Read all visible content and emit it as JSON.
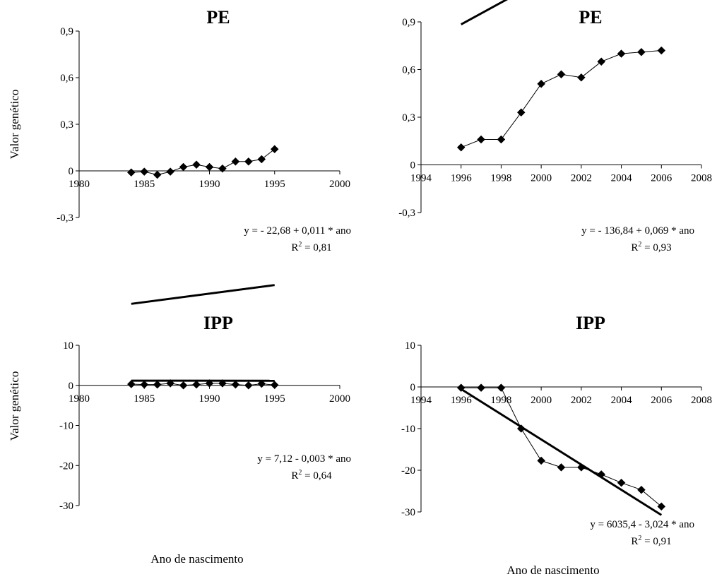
{
  "figure": {
    "x_axis_label_left": "Ano de nascimento",
    "x_axis_label_right": "Ano de nascimento",
    "y_axis_label_top": "Valor genético",
    "y_axis_label_bottom": "Valor genético",
    "line_color": "#000000"
  },
  "chart_data": [
    {
      "type": "line",
      "title": "PE",
      "xlabel": "",
      "ylabel": "Valor genético",
      "xlim": [
        1980,
        2000
      ],
      "ylim": [
        -0.3,
        0.9
      ],
      "xticks": [
        "1980",
        "1985",
        "1990",
        "1995",
        "2000"
      ],
      "yticks": [
        "-0,3",
        "0",
        "0,3",
        "0,6",
        "0,9"
      ],
      "x": [
        1984,
        1985,
        1986,
        1987,
        1988,
        1989,
        1990,
        1991,
        1992,
        1993,
        1994,
        1995
      ],
      "y": [
        -0.01,
        -0.005,
        -0.025,
        -0.005,
        0.025,
        0.04,
        0.025,
        0.015,
        0.06,
        0.06,
        0.075,
        0.14
      ],
      "trend": {
        "intercept": -22.68,
        "slope": 0.011
      },
      "equation": "y = - 22,68 + 0,011 * ano",
      "r2_prefix": "R",
      "r2_value": " = 0,81"
    },
    {
      "type": "line",
      "title": "PE",
      "xlabel": "",
      "ylabel": "",
      "xlim": [
        1994,
        2008
      ],
      "ylim": [
        -0.3,
        0.9
      ],
      "xticks": [
        "1994",
        "1996",
        "1998",
        "2000",
        "2002",
        "2004",
        "2006",
        "2008"
      ],
      "yticks": [
        "-0,3",
        "0",
        "0,3",
        "0,6",
        "0,9"
      ],
      "x": [
        1996,
        1997,
        1998,
        1999,
        2000,
        2001,
        2002,
        2003,
        2004,
        2005,
        2006
      ],
      "y": [
        0.11,
        0.16,
        0.16,
        0.33,
        0.51,
        0.57,
        0.55,
        0.65,
        0.7,
        0.71,
        0.72
      ],
      "trend": {
        "intercept": -136.84,
        "slope": 0.069
      },
      "equation": "y = - 136,84 + 0,069 * ano",
      "r2_prefix": "R",
      "r2_value": " = 0,93"
    },
    {
      "type": "line",
      "title": "IPP",
      "xlabel": "Ano de nascimento",
      "ylabel": "Valor genético",
      "xlim": [
        1980,
        2000
      ],
      "ylim": [
        -30,
        10
      ],
      "xticks": [
        "1980",
        "1985",
        "1990",
        "1995",
        "2000"
      ],
      "yticks": [
        "-30",
        "-20",
        "-10",
        "0",
        "10"
      ],
      "x": [
        1984,
        1985,
        1986,
        1987,
        1988,
        1989,
        1990,
        1991,
        1992,
        1993,
        1994,
        1995
      ],
      "y": [
        0.3,
        0.2,
        0.2,
        0.5,
        0.0,
        0.2,
        0.5,
        0.5,
        0.2,
        0.0,
        0.4,
        0.1
      ],
      "trend": {
        "intercept": 7.12,
        "slope": -0.003
      },
      "equation": "y = 7,12 - 0,003 * ano",
      "r2_prefix": "R",
      "r2_value": " = 0,64"
    },
    {
      "type": "line",
      "title": "IPP",
      "xlabel": "Ano de nascimento",
      "ylabel": "",
      "xlim": [
        1994,
        2008
      ],
      "ylim": [
        -30,
        10
      ],
      "xticks": [
        "1994",
        "1996",
        "1998",
        "2000",
        "2002",
        "2004",
        "2006",
        "2008"
      ],
      "yticks": [
        "-30",
        "-20",
        "-10",
        "0",
        "10"
      ],
      "x": [
        1996,
        1997,
        1998,
        1999,
        2000,
        2001,
        2002,
        2003,
        2004,
        2005,
        2006
      ],
      "y": [
        -0.2,
        -0.2,
        -0.2,
        -10.0,
        -17.7,
        -19.3,
        -19.3,
        -21.0,
        -23.0,
        -24.7,
        -28.7
      ],
      "trend": {
        "intercept": 6035.4,
        "slope": -3.024
      },
      "equation": "y = 6035,4 - 3,024 * ano",
      "r2_prefix": "R",
      "r2_value": " = 0,91"
    }
  ]
}
